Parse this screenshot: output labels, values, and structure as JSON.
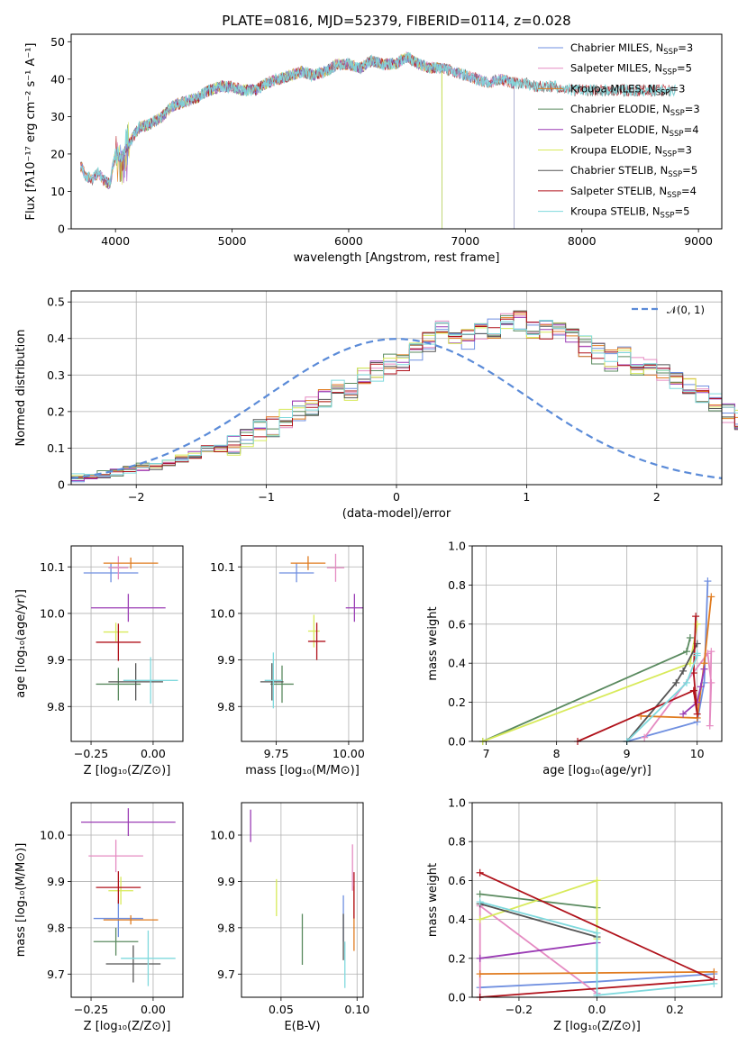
{
  "figure": {
    "title": "PLATE=0816, MJD=52379, FIBERID=0114, z=0.028"
  },
  "colors": {
    "series": [
      "#6f8fe0",
      "#e58bc2",
      "#e07b1f",
      "#5a8a5f",
      "#9b3db5",
      "#d8ea5a",
      "#555555",
      "#b0121b",
      "#7fd9dd"
    ]
  },
  "chart_data": [
    {
      "id": "spectrum",
      "type": "line",
      "title": "PLATE=0816, MJD=52379, FIBERID=0114, z=0.028",
      "xlabel": "wavelength [Angstrom, rest frame]",
      "ylabel": "Flux [fλ10⁻¹⁷ erg cm⁻² s⁻¹ A⁻¹]",
      "xlim": [
        3620,
        9200
      ],
      "ylim": [
        0,
        52
      ],
      "xticks": [
        4000,
        5000,
        6000,
        7000,
        8000,
        9000
      ],
      "yticks": [
        0,
        10,
        20,
        30,
        40,
        50
      ],
      "grid": false,
      "legend_position": "right",
      "continuum": {
        "x": [
          3700,
          3750,
          3800,
          3850,
          3900,
          3950,
          4000,
          4050,
          4100,
          4200,
          4300,
          4400,
          4500,
          4600,
          4700,
          4800,
          4900,
          5000,
          5100,
          5200,
          5300,
          5400,
          5500,
          5600,
          5700,
          5800,
          5900,
          6000,
          6100,
          6200,
          6300,
          6400,
          6500,
          6600,
          6700,
          6800,
          6900,
          7000,
          7100,
          7200,
          7300,
          7400,
          7500,
          7600,
          7700,
          7800,
          7900,
          8000,
          8100,
          8200,
          8300,
          8400,
          8500,
          8600,
          8700,
          8800
        ],
        "y": [
          17,
          14,
          13,
          15,
          13,
          12,
          20,
          19,
          22,
          27,
          28,
          30,
          33,
          34,
          35,
          37,
          38,
          38,
          37,
          37,
          39,
          40,
          41,
          42,
          41,
          42,
          44,
          44,
          43,
          45,
          44,
          44,
          46,
          44,
          43,
          43,
          42,
          41,
          40,
          39,
          40,
          39,
          39,
          38,
          38,
          38,
          37,
          37,
          37,
          37,
          37,
          37,
          37,
          37,
          37,
          37
        ]
      },
      "series": [
        {
          "name": "Chabrier MILES, N_SSP=3",
          "ssp": "3",
          "lib": "Chabrier MILES",
          "range": [
            3700,
            7420
          ]
        },
        {
          "name": "Salpeter MILES, N_SSP=5",
          "ssp": "5",
          "lib": "Salpeter MILES",
          "range": [
            3700,
            7420
          ]
        },
        {
          "name": "Kroupa MILES, N_SSP=3",
          "ssp": "3",
          "lib": "Kroupa MILES",
          "range": [
            3700,
            7420
          ]
        },
        {
          "name": "Chabrier ELODIE, N_SSP=3",
          "ssp": "3",
          "lib": "Chabrier ELODIE",
          "range": [
            3900,
            6800
          ]
        },
        {
          "name": "Salpeter ELODIE, N_SSP=4",
          "ssp": "4",
          "lib": "Salpeter ELODIE",
          "range": [
            3900,
            6800
          ]
        },
        {
          "name": "Kroupa ELODIE, N_SSP=3",
          "ssp": "3",
          "lib": "Kroupa ELODIE",
          "range": [
            3900,
            6800
          ]
        },
        {
          "name": "Chabrier STELIB, N_SSP=5",
          "ssp": "5",
          "lib": "Chabrier STELIB",
          "range": [
            3700,
            8800
          ]
        },
        {
          "name": "Salpeter STELIB, N_SSP=4",
          "ssp": "4",
          "lib": "Salpeter STELIB",
          "range": [
            3700,
            8800
          ]
        },
        {
          "name": "Kroupa STELIB, N_SSP=5",
          "ssp": "5",
          "lib": "Kroupa STELIB",
          "range": [
            3700,
            8800
          ]
        }
      ]
    },
    {
      "id": "residuals",
      "type": "histogram",
      "xlabel": "(data-model)/error",
      "ylabel": "Normed distribution",
      "xlim": [
        -2.5,
        2.5
      ],
      "ylim": [
        0,
        0.53
      ],
      "xticks": [
        -2,
        -1,
        0,
        1,
        2
      ],
      "xtick_labels": [
        "−2",
        "−1",
        "0",
        "1",
        "2"
      ],
      "yticks": [
        0.0,
        0.1,
        0.2,
        0.3,
        0.4,
        0.5
      ],
      "grid": true,
      "legend_position": "top-right",
      "reference_curve": {
        "name": "N(0,1)",
        "label": "𝒩(0, 1)",
        "mean": 0,
        "sigma": 1
      },
      "bin_width": 0.1,
      "bin_start": -2.5,
      "base_values": [
        0.02,
        0.025,
        0.03,
        0.035,
        0.04,
        0.05,
        0.05,
        0.06,
        0.07,
        0.08,
        0.1,
        0.1,
        0.11,
        0.13,
        0.15,
        0.16,
        0.18,
        0.2,
        0.21,
        0.24,
        0.26,
        0.26,
        0.29,
        0.31,
        0.33,
        0.33,
        0.37,
        0.39,
        0.42,
        0.4,
        0.4,
        0.42,
        0.43,
        0.44,
        0.45,
        0.43,
        0.42,
        0.42,
        0.4,
        0.38,
        0.36,
        0.34,
        0.35,
        0.33,
        0.32,
        0.3,
        0.28,
        0.26,
        0.24,
        0.22,
        0.2,
        0.18,
        0.16,
        0.14,
        0.12,
        0.1,
        0.09,
        0.07,
        0.06,
        0.05,
        0.05,
        0.04,
        0.035,
        0.03,
        0.03,
        0.02,
        0.02,
        0.03,
        0.03,
        0.025
      ]
    },
    {
      "id": "age_vs_Z",
      "type": "errorbar",
      "xlabel": "Z [log₁₀(Z/Z⊙)]",
      "ylabel": "age  [log₁₀(age/yr)]",
      "xlim": [
        -0.33,
        0.12
      ],
      "ylim": [
        9.725,
        10.145
      ],
      "xticks": [
        -0.25,
        0.0
      ],
      "xtick_labels": [
        "−0.25",
        "0.00"
      ],
      "yticks": [
        9.8,
        9.9,
        10.0,
        10.1
      ],
      "ytick_labels": [
        "9.8",
        "9.9",
        "10.0",
        "10.1"
      ],
      "grid": true,
      "points": [
        {
          "series": 0,
          "x": -0.17,
          "y": 10.087,
          "xerr": 0.11,
          "yerr": 0.02
        },
        {
          "series": 1,
          "x": -0.14,
          "y": 10.098,
          "xerr": 0.04,
          "yerr": 0.025
        },
        {
          "series": 2,
          "x": -0.09,
          "y": 10.108,
          "xerr": 0.11,
          "yerr": 0.012
        },
        {
          "series": 3,
          "x": -0.14,
          "y": 9.848,
          "xerr": 0.09,
          "yerr": 0.035
        },
        {
          "series": 4,
          "x": -0.1,
          "y": 10.012,
          "xerr": 0.15,
          "yerr": 0.03
        },
        {
          "series": 5,
          "x": -0.15,
          "y": 9.96,
          "xerr": 0.05,
          "yerr": 0.02
        },
        {
          "series": 6,
          "x": -0.07,
          "y": 9.853,
          "xerr": 0.11,
          "yerr": 0.04
        },
        {
          "series": 7,
          "x": -0.14,
          "y": 9.938,
          "xerr": 0.09,
          "yerr": 0.04
        },
        {
          "series": 8,
          "x": -0.01,
          "y": 9.856,
          "xerr": 0.11,
          "yerr": 0.05
        }
      ]
    },
    {
      "id": "age_vs_mass",
      "type": "errorbar",
      "xlabel": "mass [log₁₀(M/M⊙)]",
      "ylabel": "",
      "xlim": [
        9.63,
        10.05
      ],
      "ylim": [
        9.725,
        10.145
      ],
      "xticks": [
        9.75,
        10.0
      ],
      "xtick_labels": [
        "9.75",
        "10.00"
      ],
      "yticks": [
        9.8,
        9.9,
        10.0,
        10.1
      ],
      "ytick_labels": [
        "9.8",
        "9.9",
        "10.0",
        "10.1"
      ],
      "grid": true,
      "points": [
        {
          "series": 0,
          "x": 9.82,
          "y": 10.087,
          "xerr": 0.06,
          "yerr": 0.02
        },
        {
          "series": 1,
          "x": 9.955,
          "y": 10.098,
          "xerr": 0.03,
          "yerr": 0.03
        },
        {
          "series": 2,
          "x": 9.86,
          "y": 10.108,
          "xerr": 0.06,
          "yerr": 0.015
        },
        {
          "series": 3,
          "x": 9.77,
          "y": 9.848,
          "xerr": 0.04,
          "yerr": 0.04
        },
        {
          "series": 4,
          "x": 10.02,
          "y": 10.012,
          "xerr": 0.03,
          "yerr": 0.03
        },
        {
          "series": 5,
          "x": 9.88,
          "y": 9.962,
          "xerr": 0.02,
          "yerr": 0.035
        },
        {
          "series": 6,
          "x": 9.735,
          "y": 9.853,
          "xerr": 0.04,
          "yerr": 0.04
        },
        {
          "series": 7,
          "x": 9.89,
          "y": 9.94,
          "xerr": 0.03,
          "yerr": 0.04
        },
        {
          "series": 8,
          "x": 9.74,
          "y": 9.856,
          "xerr": 0.03,
          "yerr": 0.06
        }
      ]
    },
    {
      "id": "weight_vs_age",
      "type": "line",
      "xlabel": "age  [log₁₀(age/yr)]",
      "ylabel": "mass weight",
      "xlim": [
        6.8,
        10.35
      ],
      "ylim": [
        0,
        1.0
      ],
      "xticks": [
        7,
        8,
        9,
        10
      ],
      "xtick_labels": [
        "7",
        "8",
        "9",
        "10"
      ],
      "yticks": [
        0.0,
        0.2,
        0.4,
        0.6,
        0.8,
        1.0
      ],
      "ytick_labels": [
        "0.0",
        "0.2",
        "0.4",
        "0.6",
        "0.8",
        "1.0"
      ],
      "grid": true,
      "series": [
        {
          "series": 0,
          "x": [
            9.0,
            10.0,
            10.1,
            10.15
          ],
          "y": [
            0.0,
            0.1,
            0.3,
            0.82
          ]
        },
        {
          "series": 1,
          "x": [
            9.25,
            10.15,
            10.2,
            10.18,
            10.2
          ],
          "y": [
            0.02,
            0.45,
            0.3,
            0.08,
            0.46
          ]
        },
        {
          "series": 2,
          "x": [
            9.2,
            10.0,
            10.1,
            10.2
          ],
          "y": [
            0.13,
            0.12,
            0.4,
            0.74
          ]
        },
        {
          "series": 3,
          "x": [
            6.95,
            9.85,
            9.9
          ],
          "y": [
            0.0,
            0.46,
            0.53
          ]
        },
        {
          "series": 4,
          "x": [
            9.8,
            10.0,
            10.05,
            10.1
          ],
          "y": [
            0.14,
            0.2,
            0.28,
            0.37
          ]
        },
        {
          "series": 5,
          "x": [
            6.95,
            9.9,
            10.0
          ],
          "y": [
            0.0,
            0.4,
            0.6
          ]
        },
        {
          "series": 6,
          "x": [
            9.0,
            9.7,
            9.8,
            10.0
          ],
          "y": [
            0.0,
            0.3,
            0.36,
            0.5
          ]
        },
        {
          "series": 7,
          "x": [
            8.3,
            9.95,
            10.0,
            9.95,
            9.98
          ],
          "y": [
            0.0,
            0.26,
            0.14,
            0.35,
            0.64
          ]
        },
        {
          "series": 8,
          "x": [
            9.0,
            9.85,
            10.0,
            10.0
          ],
          "y": [
            0.0,
            0.3,
            0.44,
            0.45
          ]
        }
      ]
    },
    {
      "id": "mass_vs_Z",
      "type": "errorbar",
      "xlabel": "Z [log₁₀(Z/Z⊙)]",
      "ylabel": "mass [log₁₀(M/M⊙)]",
      "xlim": [
        -0.33,
        0.12
      ],
      "ylim": [
        9.65,
        10.07
      ],
      "xticks": [
        -0.25,
        0.0
      ],
      "xtick_labels": [
        "−0.25",
        "0.00"
      ],
      "yticks": [
        9.7,
        9.8,
        9.9,
        10.0
      ],
      "ytick_labels": [
        "9.7",
        "9.8",
        "9.9",
        "10.0"
      ],
      "grid": true,
      "points": [
        {
          "series": 0,
          "x": -0.14,
          "y": 9.82,
          "xerr": 0.1,
          "yerr": 0.04
        },
        {
          "series": 1,
          "x": -0.15,
          "y": 9.955,
          "xerr": 0.11,
          "yerr": 0.035
        },
        {
          "series": 2,
          "x": -0.09,
          "y": 9.817,
          "xerr": 0.11,
          "yerr": 0.01
        },
        {
          "series": 3,
          "x": -0.15,
          "y": 9.77,
          "xerr": 0.09,
          "yerr": 0.03
        },
        {
          "series": 4,
          "x": -0.1,
          "y": 10.028,
          "xerr": 0.19,
          "yerr": 0.03
        },
        {
          "series": 5,
          "x": -0.13,
          "y": 9.88,
          "xerr": 0.05,
          "yerr": 0.03
        },
        {
          "series": 6,
          "x": -0.08,
          "y": 9.722,
          "xerr": 0.11,
          "yerr": 0.04
        },
        {
          "series": 7,
          "x": -0.14,
          "y": 9.887,
          "xerr": 0.09,
          "yerr": 0.035
        },
        {
          "series": 8,
          "x": -0.02,
          "y": 9.734,
          "xerr": 0.11,
          "yerr": 0.06
        }
      ]
    },
    {
      "id": "mass_vs_ebv",
      "type": "errorbar",
      "xlabel": "E(B-V)",
      "ylabel": "",
      "xlim": [
        0.024,
        0.104
      ],
      "ylim": [
        9.65,
        10.07
      ],
      "xticks": [
        0.05,
        0.1
      ],
      "xtick_labels": [
        "0.05",
        "0.10"
      ],
      "yticks": [
        9.7,
        9.8,
        9.9,
        10.0
      ],
      "ytick_labels": [
        "9.7",
        "9.8",
        "9.9",
        "10.0"
      ],
      "grid": true,
      "points": [
        {
          "series": 0,
          "x": 0.091,
          "y": 9.82,
          "xerr": 0,
          "yerr": 0.05
        },
        {
          "series": 1,
          "x": 0.097,
          "y": 9.93,
          "xerr": 0,
          "yerr": 0.05
        },
        {
          "series": 2,
          "x": 0.098,
          "y": 9.82,
          "xerr": 0,
          "yerr": 0.07
        },
        {
          "series": 3,
          "x": 0.064,
          "y": 9.775,
          "xerr": 0,
          "yerr": 0.055
        },
        {
          "series": 4,
          "x": 0.03,
          "y": 10.02,
          "xerr": 0,
          "yerr": 0.035
        },
        {
          "series": 5,
          "x": 0.047,
          "y": 9.865,
          "xerr": 0,
          "yerr": 0.04
        },
        {
          "series": 6,
          "x": 0.091,
          "y": 9.78,
          "xerr": 0,
          "yerr": 0.05
        },
        {
          "series": 7,
          "x": 0.098,
          "y": 9.87,
          "xerr": 0,
          "yerr": 0.05
        },
        {
          "series": 8,
          "x": 0.092,
          "y": 9.72,
          "xerr": 0,
          "yerr": 0.05
        }
      ]
    },
    {
      "id": "weight_vs_Z",
      "type": "line",
      "xlabel": "Z [log₁₀(Z/Z⊙)]",
      "ylabel": "mass weight",
      "xlim": [
        -0.32,
        0.32
      ],
      "ylim": [
        0,
        1.0
      ],
      "xticks": [
        -0.2,
        0.0,
        0.2
      ],
      "xtick_labels": [
        "−0.2",
        "0.0",
        "0.2"
      ],
      "yticks": [
        0.0,
        0.2,
        0.4,
        0.6,
        0.8,
        1.0
      ],
      "ytick_labels": [
        "0.0",
        "0.2",
        "0.4",
        "0.6",
        "0.8",
        "1.0"
      ],
      "grid": true,
      "series": [
        {
          "series": 0,
          "x": [
            -0.3,
            0.0,
            0.3
          ],
          "y": [
            0.05,
            0.08,
            0.12
          ]
        },
        {
          "series": 1,
          "x": [
            -0.3,
            -0.3,
            0.0
          ],
          "y": [
            0.0,
            0.47,
            0.02
          ]
        },
        {
          "series": 2,
          "x": [
            -0.3,
            0.3
          ],
          "y": [
            0.12,
            0.13
          ]
        },
        {
          "series": 3,
          "x": [
            -0.3,
            0.0
          ],
          "y": [
            0.53,
            0.46
          ]
        },
        {
          "series": 4,
          "x": [
            -0.3,
            0.0
          ],
          "y": [
            0.2,
            0.28
          ]
        },
        {
          "series": 5,
          "x": [
            -0.3,
            0.0,
            0.0
          ],
          "y": [
            0.4,
            0.6,
            0.3
          ]
        },
        {
          "series": 6,
          "x": [
            -0.3,
            0.0
          ],
          "y": [
            0.48,
            0.31
          ]
        },
        {
          "series": 7,
          "x": [
            -0.3,
            0.3,
            -0.3
          ],
          "y": [
            0.0,
            0.09,
            0.64
          ]
        },
        {
          "series": 8,
          "x": [
            -0.3,
            0.0,
            0.0,
            0.3
          ],
          "y": [
            0.49,
            0.33,
            0.01,
            0.07
          ]
        }
      ]
    }
  ]
}
